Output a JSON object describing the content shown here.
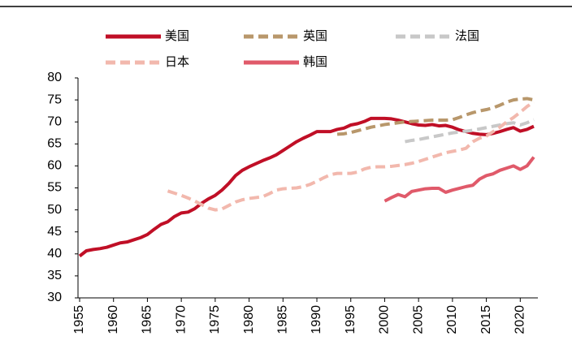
{
  "chart_data": {
    "type": "line",
    "x": [
      1955,
      1956,
      1957,
      1958,
      1959,
      1960,
      1961,
      1962,
      1963,
      1964,
      1965,
      1966,
      1967,
      1968,
      1969,
      1970,
      1971,
      1972,
      1973,
      1974,
      1975,
      1976,
      1977,
      1978,
      1979,
      1980,
      1981,
      1982,
      1983,
      1984,
      1985,
      1986,
      1987,
      1988,
      1989,
      1990,
      1991,
      1992,
      1993,
      1994,
      1995,
      1996,
      1997,
      1998,
      1999,
      2000,
      2001,
      2002,
      2003,
      2004,
      2005,
      2006,
      2007,
      2008,
      2009,
      2010,
      2011,
      2012,
      2013,
      2014,
      2015,
      2016,
      2017,
      2018,
      2019,
      2020,
      2021,
      2022
    ],
    "xlim": [
      1955,
      2022
    ],
    "xticks": [
      1955,
      1960,
      1965,
      1970,
      1975,
      1980,
      1985,
      1990,
      1995,
      2000,
      2005,
      2010,
      2015,
      2020
    ],
    "ylim": [
      30,
      80
    ],
    "yticks": [
      30,
      35,
      40,
      45,
      50,
      55,
      60,
      65,
      70,
      75,
      80
    ],
    "series": [
      {
        "name": "美国",
        "color": "#c00f26",
        "dash": "solid",
        "width": 4,
        "values": [
          39.5,
          40.7,
          41.0,
          41.2,
          41.5,
          42.0,
          42.5,
          42.7,
          43.2,
          43.7,
          44.4,
          45.6,
          46.7,
          47.3,
          48.5,
          49.3,
          49.5,
          50.3,
          51.5,
          52.5,
          53.3,
          54.5,
          56.0,
          57.8,
          59.0,
          59.8,
          60.5,
          61.2,
          61.8,
          62.5,
          63.5,
          64.5,
          65.5,
          66.3,
          67.0,
          67.8,
          67.8,
          67.8,
          68.3,
          68.6,
          69.3,
          69.6,
          70.1,
          70.8,
          70.8,
          70.8,
          70.7,
          70.4,
          70.0,
          69.6,
          69.3,
          69.2,
          69.4,
          69.1,
          69.2,
          68.8,
          68.2,
          67.8,
          67.4,
          67.2,
          67.1,
          67.4,
          67.8,
          68.3,
          68.7,
          67.9,
          68.3,
          69.0
        ]
      },
      {
        "name": "英国",
        "color": "#b8976b",
        "dash": "dashed",
        "width": 4,
        "values": [
          null,
          null,
          null,
          null,
          null,
          null,
          null,
          null,
          null,
          null,
          null,
          null,
          null,
          null,
          null,
          null,
          null,
          null,
          null,
          null,
          null,
          null,
          null,
          null,
          null,
          null,
          null,
          null,
          null,
          null,
          null,
          null,
          null,
          null,
          null,
          null,
          null,
          null,
          67.2,
          67.3,
          67.6,
          68.0,
          68.4,
          68.8,
          69.1,
          69.4,
          69.6,
          69.8,
          70.0,
          70.1,
          70.2,
          70.3,
          70.4,
          70.4,
          70.4,
          70.5,
          71.0,
          71.6,
          72.1,
          72.5,
          72.8,
          73.2,
          73.8,
          74.5,
          75.0,
          75.2,
          75.3,
          75.0
        ]
      },
      {
        "name": "法国",
        "color": "#c8c8c8",
        "dash": "dashed",
        "width": 4,
        "values": [
          null,
          null,
          null,
          null,
          null,
          null,
          null,
          null,
          null,
          null,
          null,
          null,
          null,
          null,
          null,
          null,
          null,
          null,
          null,
          null,
          null,
          null,
          null,
          null,
          null,
          null,
          null,
          null,
          null,
          null,
          null,
          null,
          null,
          null,
          null,
          null,
          null,
          null,
          null,
          null,
          null,
          null,
          null,
          null,
          null,
          null,
          null,
          null,
          65.5,
          65.8,
          66.0,
          66.3,
          66.6,
          66.9,
          67.2,
          67.5,
          67.7,
          67.9,
          68.1,
          68.4,
          68.7,
          69.0,
          69.3,
          69.6,
          69.8,
          69.3,
          69.8,
          70.5
        ]
      },
      {
        "name": "日本",
        "color": "#f2b8ad",
        "dash": "dashed",
        "width": 4,
        "values": [
          null,
          null,
          null,
          null,
          null,
          null,
          null,
          null,
          null,
          null,
          null,
          null,
          null,
          54.3,
          53.8,
          53.3,
          52.7,
          52.0,
          51.2,
          50.4,
          50.0,
          50.2,
          51.0,
          51.8,
          52.3,
          52.6,
          52.8,
          53.0,
          53.7,
          54.5,
          54.8,
          54.9,
          55.0,
          55.3,
          55.8,
          56.5,
          57.3,
          58.0,
          58.3,
          58.3,
          58.3,
          58.6,
          59.3,
          59.7,
          59.8,
          59.8,
          59.9,
          60.1,
          60.3,
          60.6,
          61.0,
          61.5,
          62.0,
          62.5,
          63.0,
          63.3,
          63.6,
          64.0,
          65.5,
          66.3,
          66.8,
          67.8,
          68.8,
          70.0,
          71.0,
          72.2,
          73.5,
          74.5
        ]
      },
      {
        "name": "韩国",
        "color": "#e05a6a",
        "dash": "solid",
        "width": 4,
        "values": [
          null,
          null,
          null,
          null,
          null,
          null,
          null,
          null,
          null,
          null,
          null,
          null,
          null,
          null,
          null,
          null,
          null,
          null,
          null,
          null,
          null,
          null,
          null,
          null,
          null,
          null,
          null,
          null,
          null,
          null,
          null,
          null,
          null,
          null,
          null,
          null,
          null,
          null,
          null,
          null,
          null,
          null,
          null,
          null,
          null,
          52.0,
          52.8,
          53.5,
          53.0,
          54.2,
          54.5,
          54.8,
          54.9,
          54.9,
          54.0,
          54.5,
          54.9,
          55.3,
          55.6,
          57.0,
          57.8,
          58.2,
          59.0,
          59.5,
          60.0,
          59.2,
          60.0,
          62.0
        ]
      }
    ]
  }
}
